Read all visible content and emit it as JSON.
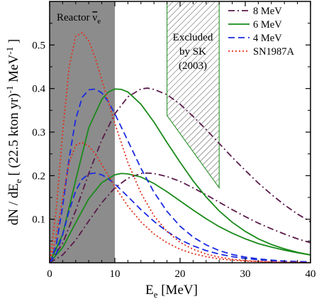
{
  "chart_data": {
    "type": "line",
    "xlabel_main": "E",
    "xlabel_sub": "e",
    "xlabel_unit": " [MeV]",
    "ylabel_parts": [
      "dN / dE",
      "e",
      " [ (22.5 kton yr)",
      "-1",
      " MeV",
      "-1",
      " ]"
    ],
    "xlim": [
      0,
      40
    ],
    "ylim": [
      0,
      0.6
    ],
    "x_ticks": [
      0,
      10,
      20,
      30,
      40
    ],
    "x_tick_labels": [
      "0",
      "10",
      "20",
      "30",
      "40"
    ],
    "y_ticks": [
      0.1,
      0.2,
      0.3,
      0.4,
      0.5
    ],
    "y_tick_labels": [
      "0.1",
      "0.2",
      "0.3",
      "0.4",
      "0.5"
    ],
    "grid": false,
    "legend_position": "top-right",
    "annotations": {
      "reactor_label": "Reactor ",
      "reactor_nu": "ν",
      "reactor_sub": "e",
      "reactor_region_x": [
        0,
        10
      ],
      "excluded_lines": [
        "Excluded",
        "by SK",
        "(2003)"
      ],
      "excluded_region_x": [
        18,
        26
      ],
      "excluded_region_top": [
        0.6,
        0.6
      ],
      "excluded_region_bottom": [
        0.338,
        0.172
      ]
    },
    "series": [
      {
        "name": "8 MeV",
        "color": "#5a1a4a",
        "dash": "dash-dot",
        "curves": [
          {
            "x": [
              0,
              2,
              4,
              6,
              8,
              10,
              12,
              14,
              15,
              16,
              18,
              20,
              22,
              24,
              26,
              28,
              30,
              32,
              34,
              36,
              38,
              40
            ],
            "y": [
              0,
              0.045,
              0.12,
              0.205,
              0.282,
              0.342,
              0.381,
              0.399,
              0.401,
              0.398,
              0.386,
              0.364,
              0.336,
              0.306,
              0.274,
              0.242,
              0.212,
              0.183,
              0.157,
              0.133,
              0.112,
              0.094
            ]
          },
          {
            "x": [
              0,
              2,
              4,
              6,
              8,
              10,
              12,
              14,
              15,
              16,
              18,
              20,
              22,
              24,
              26,
              28,
              30,
              32,
              34,
              36,
              38,
              40
            ],
            "y": [
              0,
              0.018,
              0.052,
              0.096,
              0.138,
              0.172,
              0.194,
              0.205,
              0.206,
              0.205,
              0.198,
              0.187,
              0.172,
              0.156,
              0.139,
              0.122,
              0.106,
              0.091,
              0.078,
              0.066,
              0.055,
              0.046
            ]
          }
        ]
      },
      {
        "name": "6 MeV",
        "color": "#1a8a1a",
        "dash": "solid",
        "curves": [
          {
            "x": [
              0,
              2,
              4,
              6,
              8,
              9,
              10,
              11,
              12,
              14,
              16,
              18,
              20,
              22,
              24,
              26,
              28,
              30,
              32,
              34,
              36,
              38,
              40
            ],
            "y": [
              0,
              0.065,
              0.19,
              0.31,
              0.375,
              0.392,
              0.399,
              0.398,
              0.392,
              0.364,
              0.323,
              0.276,
              0.231,
              0.188,
              0.151,
              0.119,
              0.093,
              0.072,
              0.055,
              0.042,
              0.032,
              0.024,
              0.018
            ]
          },
          {
            "x": [
              0,
              2,
              4,
              6,
              8,
              10,
              11,
              12,
              14,
              16,
              18,
              20,
              22,
              24,
              26,
              28,
              30,
              32,
              34,
              36,
              38,
              40
            ],
            "y": [
              0,
              0.035,
              0.092,
              0.147,
              0.184,
              0.202,
              0.205,
              0.204,
              0.197,
              0.182,
              0.163,
              0.142,
              0.121,
              0.101,
              0.083,
              0.068,
              0.055,
              0.044,
              0.036,
              0.029,
              0.023,
              0.018
            ]
          }
        ]
      },
      {
        "name": "4 MeV",
        "color": "#1a2ae0",
        "dash": "dashed",
        "curves": [
          {
            "x": [
              0,
              1,
              2,
              3,
              4,
              5,
              6,
              7,
              8,
              9,
              10,
              12,
              14,
              16,
              18,
              20,
              22,
              24,
              26,
              28,
              30,
              32,
              34,
              36,
              38,
              40
            ],
            "y": [
              0,
              0.04,
              0.13,
              0.24,
              0.33,
              0.38,
              0.397,
              0.399,
              0.39,
              0.37,
              0.342,
              0.28,
              0.217,
              0.162,
              0.118,
              0.084,
              0.059,
              0.041,
              0.028,
              0.019,
              0.013,
              0.009,
              0.006,
              0.004,
              0.003,
              0.002
            ]
          },
          {
            "x": [
              0,
              1,
              2,
              3,
              4,
              5,
              6,
              7,
              8,
              9,
              10,
              12,
              14,
              16,
              18,
              20,
              22,
              24,
              26,
              28,
              30,
              32,
              34,
              36,
              38,
              40
            ],
            "y": [
              0,
              0.02,
              0.065,
              0.12,
              0.165,
              0.192,
              0.204,
              0.206,
              0.202,
              0.193,
              0.181,
              0.152,
              0.122,
              0.095,
              0.072,
              0.053,
              0.039,
              0.028,
              0.02,
              0.014,
              0.01,
              0.007,
              0.005,
              0.003,
              0.002,
              0.002
            ]
          }
        ]
      },
      {
        "name": "SN1987A",
        "color": "#e0301a",
        "dash": "dotted",
        "curves": [
          {
            "x": [
              0,
              1,
              2,
              3,
              4,
              5,
              6,
              7,
              8,
              9,
              10,
              12,
              14,
              16,
              18,
              20,
              22,
              24,
              26,
              28,
              30,
              32,
              34,
              36,
              38,
              40
            ],
            "y": [
              0,
              0.12,
              0.3,
              0.45,
              0.52,
              0.528,
              0.51,
              0.47,
              0.42,
              0.37,
              0.32,
              0.23,
              0.16,
              0.108,
              0.072,
              0.047,
              0.031,
              0.02,
              0.013,
              0.008,
              0.005,
              0.003,
              0.002,
              0.001,
              0.001,
              0.0
            ]
          },
          {
            "x": [
              0,
              1,
              2,
              3,
              4,
              5,
              6,
              7,
              8,
              9,
              10,
              12,
              14,
              16,
              18,
              20,
              22,
              24,
              26,
              28,
              30,
              32,
              34,
              36,
              38,
              40
            ],
            "y": [
              0,
              0.06,
              0.15,
              0.23,
              0.27,
              0.276,
              0.268,
              0.25,
              0.226,
              0.2,
              0.175,
              0.13,
              0.094,
              0.066,
              0.046,
              0.031,
              0.021,
              0.014,
              0.009,
              0.006,
              0.004,
              0.003,
              0.002,
              0.001,
              0.001,
              0.0
            ]
          }
        ]
      }
    ]
  }
}
